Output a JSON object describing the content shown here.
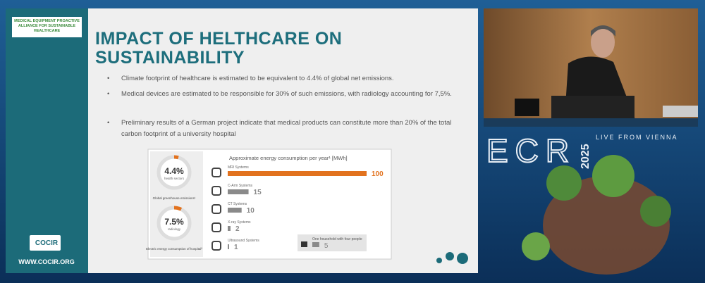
{
  "sidebar": {
    "alliance": "MEDICAL EQUIPMENT PROACTIVE ALLIANCE FOR SUSTAINABLE HEALTHCARE",
    "logo": "COCIR",
    "url": "WWW.COCIR.ORG"
  },
  "slide": {
    "title_lines": [
      "IMPACT OF HELTHCARE ON",
      "SUSTAINABILITY"
    ],
    "bullets": [
      "Climate footprint of healthcare is estimated to be equivalent to 4.4% of global net emissions.",
      "Medical devices are estimated to be responsible for 30% of such emissions, with radiology accounting for 7,5%.",
      "Preliminary results of a German project indicate that medical products can constitute more than 20% of the total carbon footprint of a university hospital"
    ]
  },
  "chart": {
    "title": "Approximate energy consumption per year¹ [MWh]",
    "rows": [
      {
        "label": "MRI Systems",
        "value": 100
      },
      {
        "label": "C-Arm Systems",
        "value": 15
      },
      {
        "label": "CT Systems",
        "value": 10
      },
      {
        "label": "X-ray Systems",
        "value": 2
      },
      {
        "label": "Ultrasound Systems",
        "value": 1
      }
    ],
    "household": {
      "label": "One household with four people",
      "value": 5
    },
    "donuts": [
      {
        "value": 4.4,
        "label": "4.4%",
        "sub": "health sectors",
        "caption": "Global greenhouse emissions¹"
      },
      {
        "value": 7.5,
        "label": "7.5%",
        "sub": "radiology",
        "caption": "Electric energy consumption of hospital²"
      }
    ]
  },
  "event": {
    "name": "ECR",
    "year": "2025",
    "tagline": "LIVE FROM VIENNA"
  }
}
